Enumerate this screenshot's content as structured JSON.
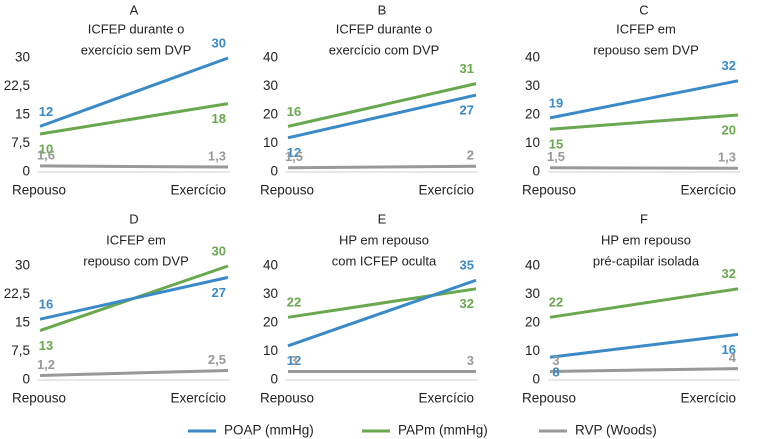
{
  "legend": [
    {
      "name": "POAP (mmHg)",
      "color": "#3a8ac8"
    },
    {
      "name": "PAPm (mmHg)",
      "color": "#6aa84f"
    },
    {
      "name": "RVP (Woods)",
      "color": "#999999"
    }
  ],
  "chart_data": [
    {
      "type": "line",
      "letter": "A",
      "title": [
        "ICFEP durante o",
        "exercício sem DVP"
      ],
      "categories": [
        "Repouso",
        "Exercício"
      ],
      "ylim": [
        0,
        30
      ],
      "yticks": [
        "0",
        "7,5",
        "15",
        "22,5",
        "30"
      ],
      "yticks_values": [
        0,
        7.5,
        15,
        22.5,
        30
      ],
      "series": [
        {
          "name": "POAP (mmHg)",
          "values": [
            12,
            30
          ],
          "labels": [
            "12",
            "30"
          ]
        },
        {
          "name": "PAPm (mmHg)",
          "values": [
            10,
            18
          ],
          "labels": [
            "10",
            "18"
          ]
        },
        {
          "name": "RVP (Woods)",
          "values": [
            1.6,
            1.3
          ],
          "labels": [
            "1,6",
            "1,3"
          ]
        }
      ]
    },
    {
      "type": "line",
      "letter": "B",
      "title": [
        "ICFEP durante o",
        "exercício com DVP"
      ],
      "categories": [
        "Repouso",
        "Exercício"
      ],
      "ylim": [
        0,
        40
      ],
      "yticks": [
        "0",
        "10",
        "20",
        "30",
        "40"
      ],
      "yticks_values": [
        0,
        10,
        20,
        30,
        40
      ],
      "series": [
        {
          "name": "POAP (mmHg)",
          "values": [
            12,
            27
          ],
          "labels": [
            "12",
            "27"
          ]
        },
        {
          "name": "PAPm (mmHg)",
          "values": [
            16,
            31
          ],
          "labels": [
            "16",
            "31"
          ]
        },
        {
          "name": "RVP (Woods)",
          "values": [
            1.5,
            2
          ],
          "labels": [
            "1,5",
            "2"
          ]
        }
      ]
    },
    {
      "type": "line",
      "letter": "C",
      "title": [
        "ICFEP em",
        "repouso sem DVP"
      ],
      "categories": [
        "Repouso",
        "Exercício"
      ],
      "ylim": [
        0,
        40
      ],
      "yticks": [
        "0",
        "10",
        "20",
        "30",
        "40"
      ],
      "yticks_values": [
        0,
        10,
        20,
        30,
        40
      ],
      "series": [
        {
          "name": "POAP (mmHg)",
          "values": [
            19,
            32
          ],
          "labels": [
            "19",
            "32"
          ]
        },
        {
          "name": "PAPm (mmHg)",
          "values": [
            15,
            20
          ],
          "labels": [
            "15",
            "20"
          ]
        },
        {
          "name": "RVP (Woods)",
          "values": [
            1.5,
            1.3
          ],
          "labels": [
            "1,5",
            "1,3"
          ]
        }
      ]
    },
    {
      "type": "line",
      "letter": "D",
      "title": [
        "ICFEP em",
        "repouso com DVP"
      ],
      "categories": [
        "Repouso",
        "Exercício"
      ],
      "ylim": [
        0,
        30
      ],
      "yticks": [
        "0",
        "7,5",
        "15",
        "22,5",
        "30"
      ],
      "yticks_values": [
        0,
        7.5,
        15,
        22.5,
        30
      ],
      "series": [
        {
          "name": "POAP (mmHg)",
          "values": [
            16,
            27
          ],
          "labels": [
            "16",
            "27"
          ]
        },
        {
          "name": "PAPm (mmHg)",
          "values": [
            13,
            30
          ],
          "labels": [
            "13",
            "30"
          ]
        },
        {
          "name": "RVP (Woods)",
          "values": [
            1.2,
            2.5
          ],
          "labels": [
            "1,2",
            "2,5"
          ]
        }
      ]
    },
    {
      "type": "line",
      "letter": "E",
      "title": [
        "HP em repouso",
        "com ICFEP oculta"
      ],
      "categories": [
        "Repouso",
        "Exercício"
      ],
      "ylim": [
        0,
        40
      ],
      "yticks": [
        "0",
        "10",
        "20",
        "30",
        "40"
      ],
      "yticks_values": [
        0,
        10,
        20,
        30,
        40
      ],
      "series": [
        {
          "name": "POAP (mmHg)",
          "values": [
            12,
            35
          ],
          "labels": [
            "12",
            "35"
          ]
        },
        {
          "name": "PAPm (mmHg)",
          "values": [
            22,
            32
          ],
          "labels": [
            "22",
            "32"
          ]
        },
        {
          "name": "RVP (Woods)",
          "values": [
            3,
            3
          ],
          "labels": [
            "3",
            "3"
          ]
        }
      ]
    },
    {
      "type": "line",
      "letter": "F",
      "title": [
        "HP em repouso",
        "pré-capilar isolada"
      ],
      "categories": [
        "Repouso",
        "Exercício"
      ],
      "ylim": [
        0,
        40
      ],
      "yticks": [
        "0",
        "10",
        "20",
        "30",
        "40"
      ],
      "yticks_values": [
        0,
        10,
        20,
        30,
        40
      ],
      "series": [
        {
          "name": "POAP (mmHg)",
          "values": [
            8,
            16
          ],
          "labels": [
            "8",
            "16"
          ]
        },
        {
          "name": "PAPm (mmHg)",
          "values": [
            22,
            32
          ],
          "labels": [
            "22",
            "32"
          ]
        },
        {
          "name": "RVP (Woods)",
          "values": [
            3,
            4
          ],
          "labels": [
            "3",
            "4"
          ]
        }
      ]
    }
  ]
}
